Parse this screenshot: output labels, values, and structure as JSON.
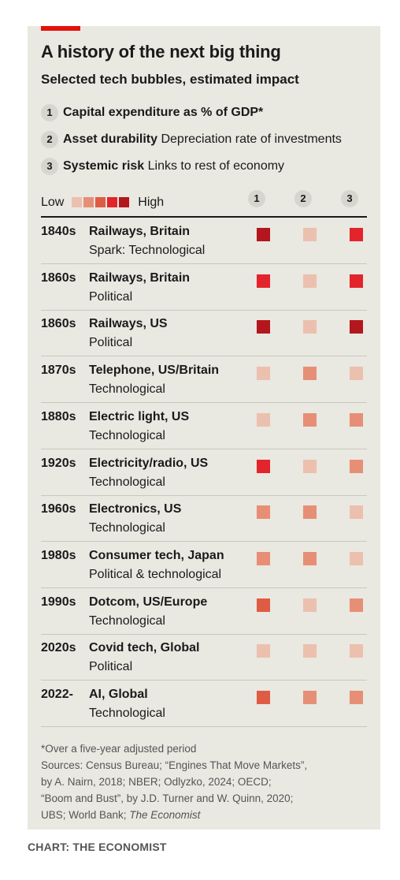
{
  "title": "A history of the next big thing",
  "subtitle": "Selected tech bubbles, estimated impact",
  "criteria": [
    {
      "num": "1",
      "bold": "Capital expenditure as % of GDP*",
      "rest": ""
    },
    {
      "num": "2",
      "bold": "Asset durability",
      "rest": " Depreciation rate of investments"
    },
    {
      "num": "3",
      "bold": "Systemic risk",
      "rest": " Links to rest of economy"
    }
  ],
  "legend": {
    "low": "Low",
    "high": "High"
  },
  "scale_colors": [
    "#ecc0ae",
    "#e68f76",
    "#df5c44",
    "#e3242b",
    "#b3161c"
  ],
  "columns": [
    "1",
    "2",
    "3"
  ],
  "chart_data": {
    "type": "table",
    "scale": "1 (Low) to 5 (High)",
    "rows": [
      {
        "year": "1840s",
        "name": "Railways, Britain",
        "spark": "Spark: Technological",
        "values": [
          5,
          1,
          4
        ]
      },
      {
        "year": "1860s",
        "name": "Railways, Britain",
        "spark": "Political",
        "values": [
          4,
          1,
          4
        ]
      },
      {
        "year": "1860s",
        "name": "Railways, US",
        "spark": "Political",
        "values": [
          5,
          1,
          5
        ]
      },
      {
        "year": "1870s",
        "name": "Telephone, US/Britain",
        "spark": "Technological",
        "values": [
          1,
          2,
          1
        ]
      },
      {
        "year": "1880s",
        "name": "Electric light, US",
        "spark": "Technological",
        "values": [
          1,
          2,
          2
        ]
      },
      {
        "year": "1920s",
        "name": "Electricity/radio, US",
        "spark": "Technological",
        "values": [
          4,
          1,
          2
        ]
      },
      {
        "year": "1960s",
        "name": "Electronics, US",
        "spark": "Technological",
        "values": [
          2,
          2,
          1
        ]
      },
      {
        "year": "1980s",
        "name": "Consumer tech, Japan",
        "spark": "Political & technological",
        "values": [
          2,
          2,
          1
        ]
      },
      {
        "year": "1990s",
        "name": "Dotcom, US/Europe",
        "spark": "Technological",
        "values": [
          3,
          1,
          2
        ]
      },
      {
        "year": "2020s",
        "name": "Covid tech, Global",
        "spark": "Political",
        "values": [
          1,
          1,
          1
        ]
      },
      {
        "year": "2022-",
        "name": "AI, Global",
        "spark": "Technological",
        "values": [
          3,
          2,
          2
        ]
      }
    ]
  },
  "footnote": [
    "*Over a five-year adjusted period",
    "Sources: Census Bureau; “Engines That Move Markets”,",
    "by A. Nairn, 2018; NBER; Odlyzko, 2024; OECD;",
    "“Boom and Bust”, by J.D. Turner and W. Quinn, 2020;",
    "UBS; World Bank; The Economist"
  ],
  "credit": "CHART: THE ECONOMIST"
}
